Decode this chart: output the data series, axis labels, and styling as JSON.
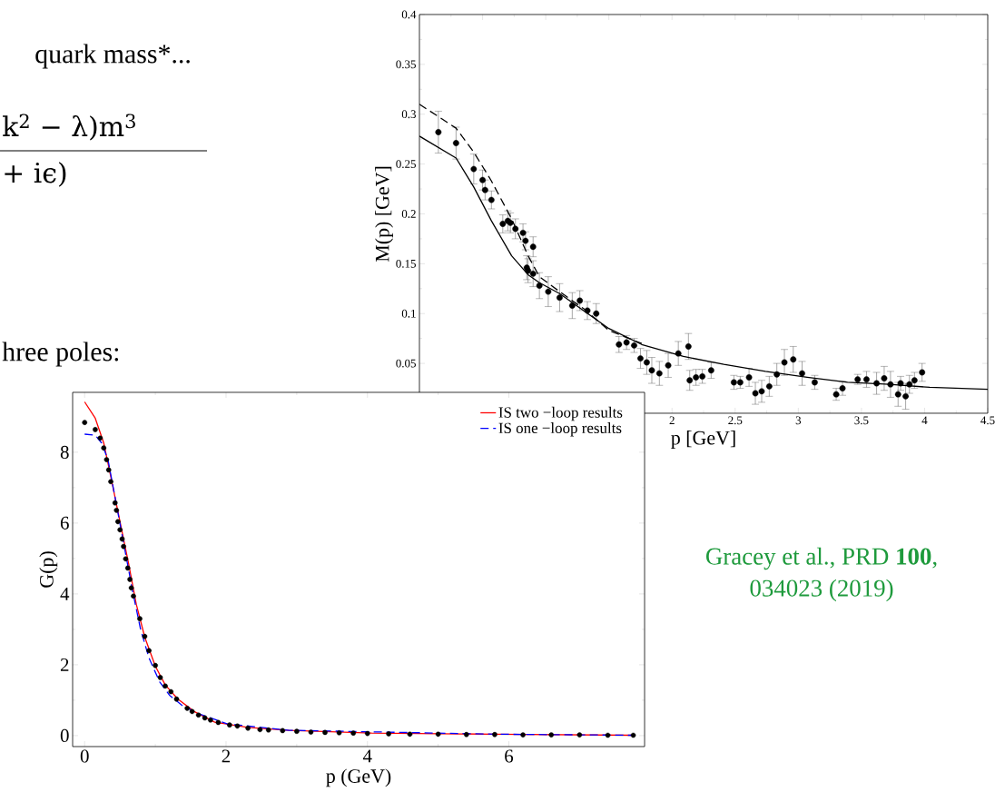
{
  "chart_data": [
    {
      "type": "scatter",
      "xlabel": "p  [GeV]",
      "ylabel": "M(p)  [GeV]",
      "xlim": [
        0,
        4.5
      ],
      "ylim": [
        0,
        0.4
      ],
      "xticks": [
        {
          "value": 0,
          "label": null
        },
        {
          "value": 0.5,
          "label": null
        },
        {
          "value": 1,
          "label": null
        },
        {
          "value": 1.5,
          "label": null
        },
        2,
        2.5,
        3,
        3.5,
        4,
        4.5
      ],
      "yticks": [
        0.05,
        0.1,
        0.15,
        0.2,
        0.25,
        0.3,
        0.35,
        0.4
      ],
      "legend": false,
      "annotations": [
        "quark mass*...",
        "k$^{2}$ − λ)m$^{3}$",
        "+ iϵ)",
        "hree poles:"
      ],
      "series": [
        {
          "color": "#000000",
          "marker": "circle",
          "x": [
            0.15,
            0.29,
            0.43,
            0.5,
            0.52,
            0.57,
            0.66,
            0.7,
            0.72,
            0.76,
            0.82,
            0.84,
            0.85,
            0.86,
            0.9,
            0.9,
            0.95,
            1.02,
            1.11,
            1.21,
            1.27,
            1.33,
            1.4,
            1.58,
            1.64,
            1.7,
            1.75,
            1.8,
            1.84,
            1.9,
            1.97,
            2.05,
            2.13,
            2.14,
            2.19,
            2.24,
            2.31,
            2.49,
            2.54,
            2.61,
            2.66,
            2.71,
            2.77,
            2.83,
            2.89,
            2.96,
            3.03,
            3.13,
            3.3,
            3.35,
            3.47,
            3.54,
            3.62,
            3.68,
            3.73,
            3.79,
            3.81,
            3.85,
            3.88,
            3.92,
            3.98
          ],
          "values": [
            0.282,
            0.271,
            0.245,
            0.234,
            0.224,
            0.214,
            0.19,
            0.193,
            0.191,
            0.185,
            0.181,
            0.173,
            0.146,
            0.143,
            0.167,
            0.14,
            0.128,
            0.122,
            0.116,
            0.108,
            0.113,
            0.103,
            0.1,
            0.069,
            0.071,
            0.068,
            0.055,
            0.051,
            0.043,
            0.04,
            0.048,
            0.06,
            0.067,
            0.033,
            0.036,
            0.037,
            0.043,
            0.031,
            0.031,
            0.036,
            0.02,
            0.022,
            0.027,
            0.039,
            0.051,
            0.054,
            0.04,
            0.031,
            0.019,
            0.025,
            0.034,
            0.034,
            0.03,
            0.035,
            0.029,
            0.019,
            0.03,
            0.017,
            0.029,
            0.033,
            0.041
          ],
          "errors": [
            0.021,
            0.016,
            0.015,
            0.01,
            0.01,
            0.009,
            0.009,
            0.01,
            0.01,
            0.01,
            0.009,
            0.009,
            0.012,
            0.012,
            0.01,
            0.013,
            0.013,
            0.015,
            0.014,
            0.013,
            0.01,
            0.009,
            0.01,
            0.008,
            0.007,
            0.007,
            0.01,
            0.012,
            0.013,
            0.012,
            0.012,
            0.012,
            0.013,
            0.01,
            0.008,
            0.007,
            0.008,
            0.007,
            0.006,
            0.009,
            0.011,
            0.011,
            0.01,
            0.011,
            0.013,
            0.013,
            0.012,
            0.007,
            0.006,
            0.007,
            0.005,
            0.008,
            0.011,
            0.012,
            0.013,
            0.012,
            0.007,
            0.013,
            0.009,
            0.008,
            0.009
          ]
        },
        {
          "type": "line",
          "color": "#000000",
          "marker": "none",
          "line_style": "solid",
          "x": [
            0,
            0.29,
            0.43,
            0.57,
            0.73,
            0.86,
            0.95,
            1.11,
            1.31,
            1.5,
            1.76,
            2.09,
            2.41,
            2.74,
            3.07,
            3.39,
            3.72,
            4.04,
            4.5
          ],
          "values": [
            0.278,
            0.256,
            0.227,
            0.193,
            0.158,
            0.139,
            0.131,
            0.12,
            0.102,
            0.085,
            0.069,
            0.057,
            0.049,
            0.042,
            0.036,
            0.031,
            0.029,
            0.026,
            0.024
          ]
        },
        {
          "type": "line",
          "color": "#000000",
          "marker": "none",
          "line_style": "dashed",
          "x": [
            0,
            0.29,
            0.43,
            0.57,
            0.73,
            0.86,
            0.95,
            1.11,
            1.31,
            1.5,
            1.76
          ],
          "values": [
            0.31,
            0.286,
            0.262,
            0.233,
            0.195,
            0.158,
            0.137,
            0.122,
            0.104,
            0.083,
            0.07
          ]
        }
      ]
    },
    {
      "type": "scatter",
      "xlabel": "p (GeV)",
      "ylabel": "G(p)",
      "xlim": [
        -0.17,
        7.92
      ],
      "ylim": [
        -0.31,
        9.69
      ],
      "xticks": [
        0,
        2,
        4,
        6
      ],
      "yticks": [
        0,
        2,
        4,
        6,
        8
      ],
      "legend": "top right",
      "annotations": [
        "Gracey et al., PRD **100**,",
        "034023 (2019)"
      ],
      "series": [
        {
          "color": "#000000",
          "marker": "circle",
          "x": [
            0,
            0.15,
            0.22,
            0.27,
            0.31,
            0.34,
            0.37,
            0.43,
            0.45,
            0.47,
            0.5,
            0.53,
            0.55,
            0.58,
            0.61,
            0.64,
            0.66,
            0.69,
            0.78,
            0.85,
            0.91,
            1.0,
            1.07,
            1.14,
            1.22,
            1.3,
            1.45,
            1.52,
            1.61,
            1.7,
            1.78,
            1.89,
            2.05,
            2.16,
            2.31,
            2.48,
            2.6,
            2.8,
            3.0,
            3.2,
            3.4,
            3.6,
            3.8,
            4.0,
            4.3,
            4.6,
            5.0,
            5.4,
            5.8,
            6.2,
            6.6,
            7.0,
            7.4,
            7.76
          ],
          "values": [
            8.84,
            8.64,
            8.4,
            8.12,
            7.79,
            7.5,
            7.17,
            6.57,
            6.36,
            6.04,
            5.81,
            5.55,
            5.34,
            4.99,
            4.73,
            4.41,
            4.17,
            3.94,
            3.3,
            2.8,
            2.4,
            1.98,
            1.64,
            1.4,
            1.24,
            1.03,
            0.77,
            0.68,
            0.58,
            0.5,
            0.44,
            0.37,
            0.3,
            0.27,
            0.21,
            0.17,
            0.16,
            0.14,
            0.12,
            0.1,
            0.09,
            0.08,
            0.07,
            0.06,
            0.05,
            0.04,
            0.04,
            0.03,
            0.03,
            0.02,
            0.02,
            0.02,
            0.01,
            0.01
          ]
        },
        {
          "type": "line",
          "name": "IS two −loop results",
          "color": "#ff0000",
          "marker": "none",
          "line_style": "solid",
          "x": [
            0,
            0.15,
            0.27,
            0.38,
            0.5,
            0.62,
            0.73,
            0.85,
            1.0,
            1.14,
            1.32,
            1.55,
            1.84,
            2.31,
            2.89,
            4.06,
            5.81,
            7.73
          ],
          "values": [
            9.42,
            8.96,
            8.26,
            7.21,
            6.04,
            4.87,
            3.71,
            2.78,
            1.96,
            1.43,
            1.03,
            0.68,
            0.38,
            0.23,
            0.15,
            0.07,
            0.04,
            0.01
          ]
        },
        {
          "type": "line",
          "name": "IS one −loop results",
          "color": "#0000ff",
          "marker": "none",
          "line_style": "dashed",
          "x": [
            0,
            0.15,
            0.24,
            0.33,
            0.44,
            0.56,
            0.68,
            0.79,
            0.91,
            1.06,
            1.2,
            1.38,
            1.61,
            2.02,
            2.89,
            5.81,
            7.73
          ],
          "values": [
            8.51,
            8.48,
            8.26,
            7.79,
            6.62,
            5.34,
            4.06,
            3.01,
            2.19,
            1.52,
            1.14,
            0.85,
            0.62,
            0.33,
            0.15,
            0.04,
            0.01
          ]
        }
      ]
    }
  ]
}
